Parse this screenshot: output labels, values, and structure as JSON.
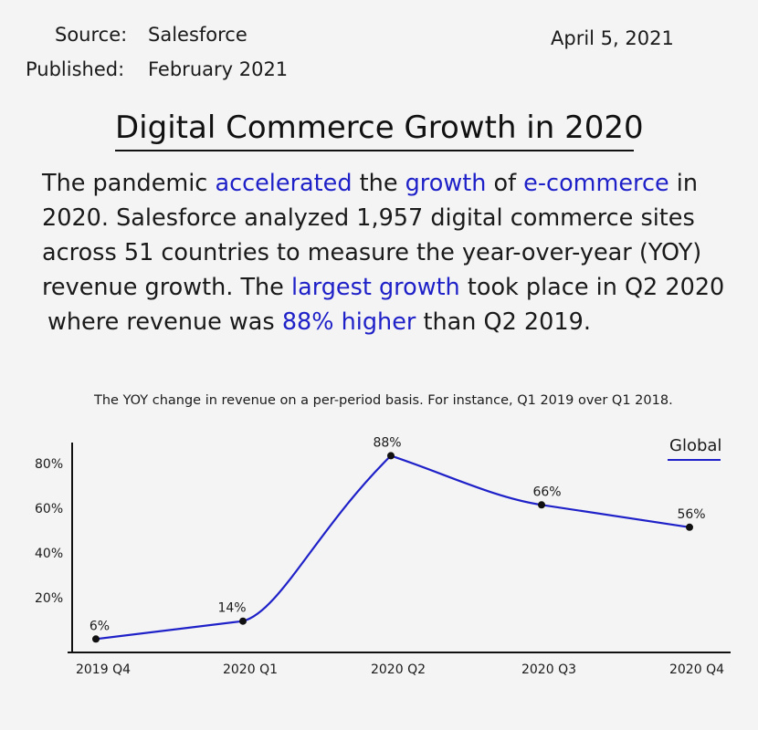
{
  "header": {
    "source_label": "Source:",
    "source_value": "Salesforce",
    "published_label": "Published:",
    "published_value": "February 2021",
    "date": "April 5, 2021"
  },
  "title": "Digital Commerce Growth in 2020",
  "paragraph": {
    "line1": [
      "The pandemic ",
      "accelerated",
      " the ",
      "growth",
      " of ",
      "e-commerce",
      " in"
    ],
    "line2": "2020. Salesforce analyzed 1,957 digital commerce sites",
    "line3": "across 51 countries to measure the year-over-year (YOY)",
    "line4": [
      "revenue growth. The ",
      "largest growth",
      " took place in Q2 2020"
    ],
    "line5": [
      "where revenue was ",
      "88% higher",
      " than Q2 2019."
    ]
  },
  "colors": {
    "highlight": "#1f21c8",
    "line": "#1f21c8",
    "axis": "#111111",
    "point": "#111111"
  },
  "chart_data": {
    "type": "line",
    "title": "The YOY change in revenue on a per-period basis. For instance, Q1 2019 over Q1 2018.",
    "categories": [
      "2019 Q4",
      "2020 Q1",
      "2020 Q2",
      "2020 Q3",
      "2020 Q4"
    ],
    "series": [
      {
        "name": "Global",
        "values": [
          6,
          14,
          88,
          66,
          56
        ],
        "labels": [
          "6%",
          "14%",
          "88%",
          "66%",
          "56%"
        ]
      }
    ],
    "yticks": [
      20,
      40,
      60,
      80
    ],
    "ytick_labels": [
      "20%",
      "40%",
      "60%",
      "80%"
    ],
    "ylim": [
      0,
      95
    ],
    "grid": false,
    "legend": "top-right"
  }
}
